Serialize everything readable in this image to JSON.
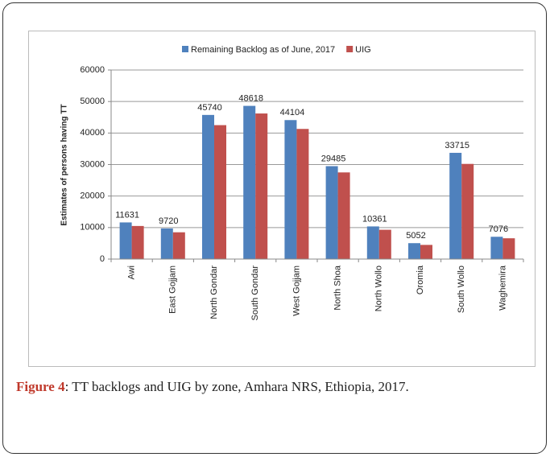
{
  "chart_data": {
    "type": "bar",
    "y_label": "Estimates of persons having TT",
    "categories": [
      "Awi",
      "East Gojjam",
      "North Gondar",
      "South Gondar",
      "West Gojjam",
      "North Shoa",
      "North Wollo",
      "Oromia",
      "South Wollo",
      "Waghemira"
    ],
    "series": [
      {
        "name": "Remaining Backlog as of June, 2017",
        "color": "#4f81bd",
        "values": [
          11631,
          9720,
          45740,
          48618,
          44104,
          29485,
          10361,
          5052,
          33715,
          7076
        ]
      },
      {
        "name": "UIG",
        "color": "#c0504d",
        "values": [
          10500,
          8500,
          42500,
          46200,
          41300,
          27500,
          9300,
          4500,
          30200,
          6600
        ]
      }
    ],
    "ylim": [
      0,
      60000
    ],
    "yticks": [
      0,
      10000,
      20000,
      30000,
      40000,
      50000,
      60000
    ],
    "legend": "top"
  },
  "caption": {
    "label": "Figure 4",
    "text": ": TT backlogs and UIG by zone, Amhara NRS, Ethiopia, 2017."
  }
}
